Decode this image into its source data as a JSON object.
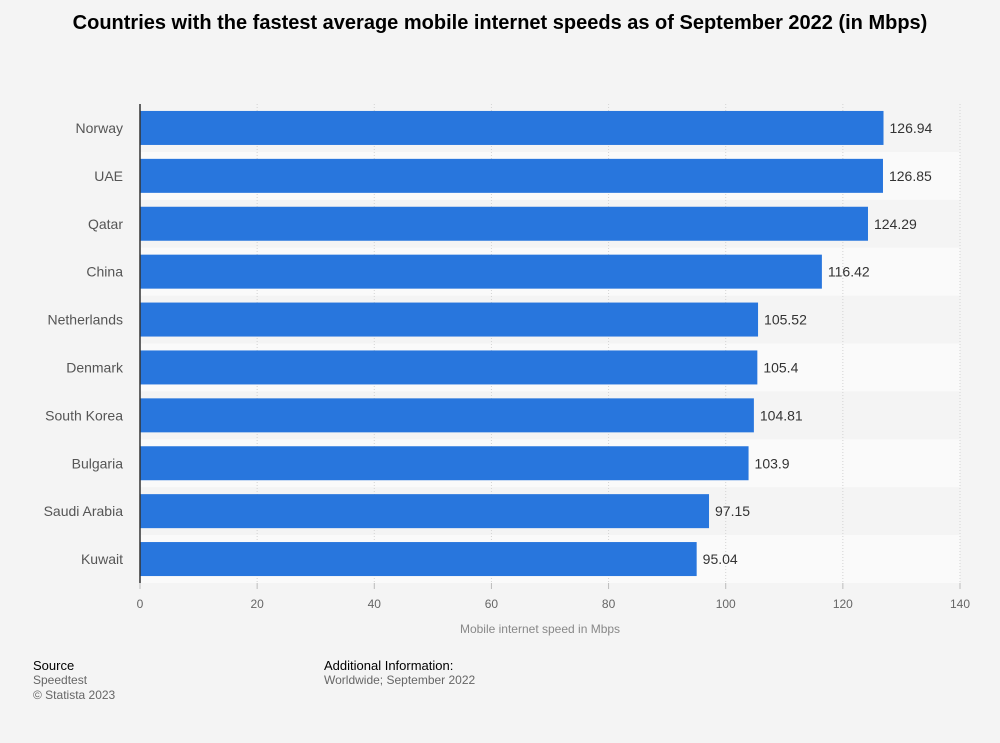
{
  "chart_data": {
    "type": "bar",
    "orientation": "horizontal",
    "title": "Countries with the fastest average mobile internet speeds as of September 2022 (in Mbps)",
    "categories": [
      "Norway",
      "UAE",
      "Qatar",
      "China",
      "Netherlands",
      "Denmark",
      "South Korea",
      "Bulgaria",
      "Saudi Arabia",
      "Kuwait"
    ],
    "values": [
      126.94,
      126.85,
      124.29,
      116.42,
      105.52,
      105.4,
      104.81,
      103.9,
      97.15,
      95.04
    ],
    "value_labels": [
      "126.94",
      "126.85",
      "124.29",
      "116.42",
      "105.52",
      "105.4",
      "104.81",
      "103.9",
      "97.15",
      "95.04"
    ],
    "xlabel": "Mobile internet speed in Mbps",
    "ylabel": "",
    "xlim": [
      0,
      140
    ],
    "xticks": [
      0,
      20,
      40,
      60,
      80,
      100,
      120,
      140
    ],
    "grid": true,
    "bar_color": "#2876dd"
  },
  "footer": {
    "source_heading": "Source",
    "source_lines": [
      "Speedtest",
      "© Statista 2023"
    ],
    "info_heading": "Additional Information:",
    "info_lines": [
      "Worldwide; September 2022"
    ]
  }
}
